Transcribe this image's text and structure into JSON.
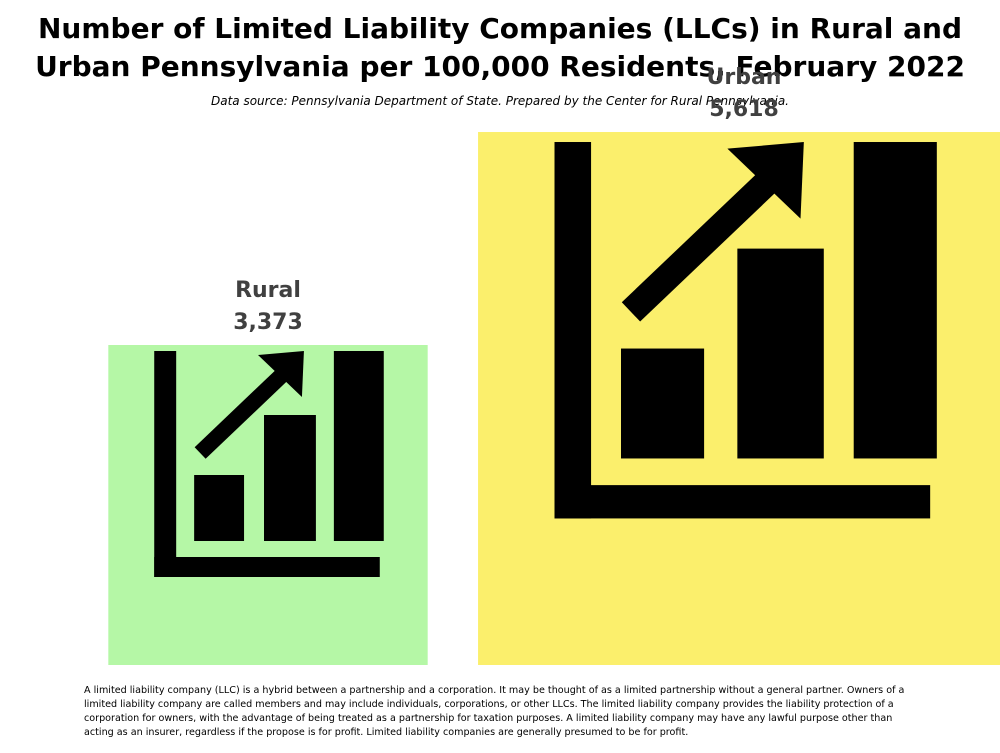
{
  "title": "Number of Limited Liability Companies (LLCs) in Rural and Urban Pennsylvania per 100,000 Residents, February 2022",
  "subtitle": "Data source: Pennsylvania Department of State. Prepared by the Center for Rural Pennsylvania.",
  "chart_data": {
    "type": "bar",
    "categories": [
      "Rural",
      "Urban"
    ],
    "values": [
      3373,
      5618
    ],
    "value_labels": [
      "3,373",
      "5,618"
    ],
    "colors": [
      "#b5f7a6",
      "#fbef6c"
    ],
    "icon": "bar-chart-growth-icon",
    "title": "Number of Limited Liability Companies (LLCs) in Rural and Urban Pennsylvania per 100,000 Residents, February 2022"
  },
  "footnote": "A limited liability company (LLC) is a hybrid between a partnership and a corporation. It may be thought of as a limited partnership without a general partner. Owners of a limited liability company are called members and may include individuals, corporations, or other LLCs. The limited liability company provides the liability protection of a corporation for owners, with the advantage of being treated as a partnership for taxation purposes. A limited liability company may have any lawful purpose other than acting as an insurer, regardless if the propose is for profit. Limited liability companies are generally presumed to be for profit."
}
